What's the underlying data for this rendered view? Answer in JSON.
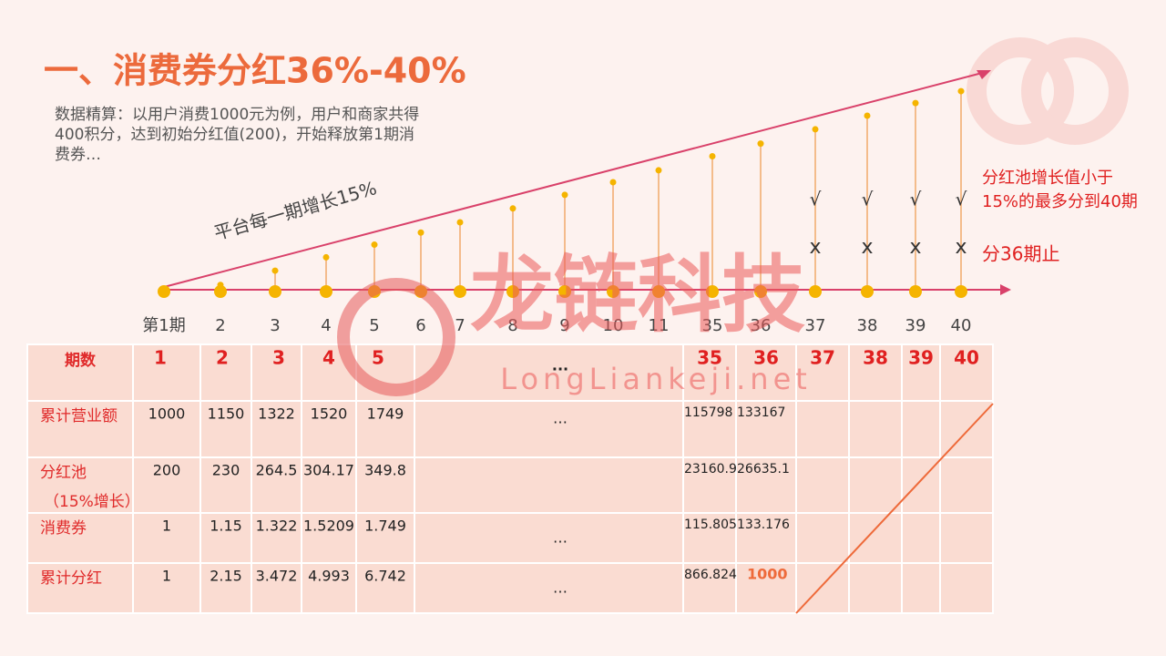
{
  "title": "一、消费券分红36%-40%",
  "intro": [
    "数据精算：以用户消费1000元为例，用户和商家共得",
    "400积分，达到初始分红值(200)，开始释放第1期消",
    "费券…"
  ],
  "slope_label": "平台每一期增长15%",
  "timeline": [
    "第1期",
    "2",
    "3",
    "4",
    "5",
    "6",
    "7",
    "8",
    "9",
    "10",
    "11",
    "35",
    "36",
    "37",
    "38",
    "39",
    "40"
  ],
  "checks": [
    "√",
    "√",
    "√",
    "√"
  ],
  "crosses": [
    "x",
    "x",
    "x",
    "x"
  ],
  "note": [
    "分红池增长值小于",
    "15%的最多分到40期"
  ],
  "stop_label": "分36期止",
  "watermark": {
    "name": "龙链科技",
    "url": "LongLiankeji.net"
  },
  "table": {
    "rows": [
      {
        "label": [
          "期数"
        ],
        "cells": [
          "1",
          "2",
          "3",
          "4",
          "5"
        ],
        "gap": "...",
        "tail": [
          "35",
          "36",
          "37",
          "38",
          "39",
          "40"
        ]
      },
      {
        "label": [
          "累计营业额"
        ],
        "cells": [
          "1000",
          "1150",
          "1322",
          "1520",
          "1749"
        ],
        "gap": "…",
        "tail": [
          "115798",
          "133167"
        ]
      },
      {
        "label": [
          "分红池",
          "（15%增长）"
        ],
        "cells": [
          "200",
          "230",
          "264.5",
          "304.17",
          "349.8"
        ],
        "tail": [
          "23160.9",
          "26635.1"
        ]
      },
      {
        "label": [
          "消费券"
        ],
        "cells": [
          "1",
          "1.15",
          "1.322",
          "1.5209",
          "1.749"
        ],
        "gap": "…",
        "tail": [
          "115.805",
          "133.176"
        ]
      },
      {
        "label": [
          "累计分红"
        ],
        "cells": [
          "1",
          "2.15",
          "3.472",
          "4.993",
          "6.742"
        ],
        "gap": "…",
        "tail": [
          "866.824",
          "1000"
        ]
      }
    ]
  }
}
